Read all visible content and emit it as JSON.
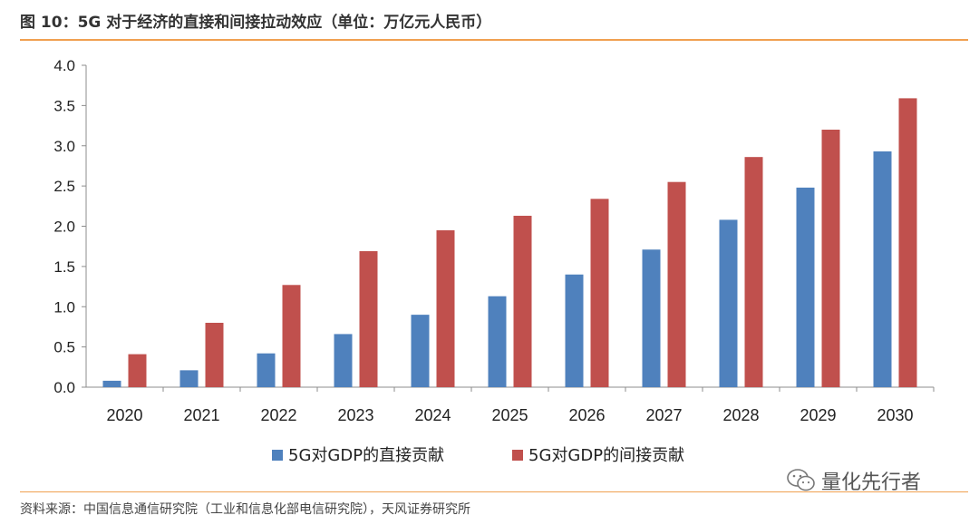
{
  "header": {
    "title": "图 10：5G 对于经济的直接和间接拉动效应（单位：万亿元人民币）"
  },
  "footer": {
    "source": "资料来源：中国信息通信研究院（工业和信息化部电信研究院），天风证券研究所"
  },
  "watermark": {
    "text": "量化先行者",
    "icon": "wechat-icon"
  },
  "colors": {
    "accent": "#f0a050",
    "direct": "#4f81bd",
    "indirect": "#c0504d"
  },
  "chart_data": {
    "type": "bar",
    "title": "5G 对于经济的直接和间接拉动效应（单位：万亿元人民币）",
    "categories": [
      "2020",
      "2021",
      "2022",
      "2023",
      "2024",
      "2025",
      "2026",
      "2027",
      "2028",
      "2029",
      "2030"
    ],
    "series": [
      {
        "name": "5G对GDP的直接贡献",
        "values": [
          0.08,
          0.21,
          0.42,
          0.66,
          0.9,
          1.13,
          1.4,
          1.71,
          2.08,
          2.48,
          2.93
        ]
      },
      {
        "name": "5G对GDP的间接贡献",
        "values": [
          0.41,
          0.8,
          1.27,
          1.69,
          1.95,
          2.13,
          2.34,
          2.55,
          2.86,
          3.2,
          3.59
        ]
      }
    ],
    "yticks": [
      "0.0",
      "0.5",
      "1.0",
      "1.5",
      "2.0",
      "2.5",
      "3.0",
      "3.5",
      "4.0"
    ],
    "ylim": [
      0,
      4.0
    ],
    "xlabel": "",
    "ylabel": "",
    "legend": "bottom-center",
    "grid": false
  }
}
